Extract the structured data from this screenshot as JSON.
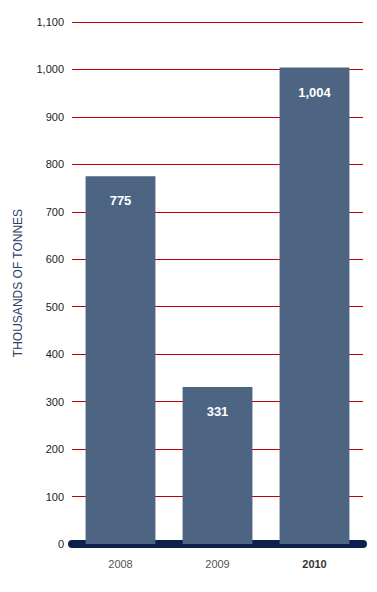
{
  "chart_data": {
    "type": "bar",
    "y_label": "THOUSANDS OF TONNES",
    "categories": [
      "2008",
      "2009",
      "2010"
    ],
    "values": [
      775,
      331,
      1004
    ],
    "value_labels": [
      "775",
      "331",
      "1,004"
    ],
    "data_labels": true,
    "color": "#4d6483",
    "ylim": [
      0,
      1100
    ],
    "yticks": [
      0,
      100,
      200,
      300,
      400,
      500,
      600,
      700,
      800,
      900,
      {
        "value": 1000,
        "label": "1,000"
      },
      {
        "value": 1100,
        "label": "1,100"
      }
    ],
    "grid": true
  }
}
